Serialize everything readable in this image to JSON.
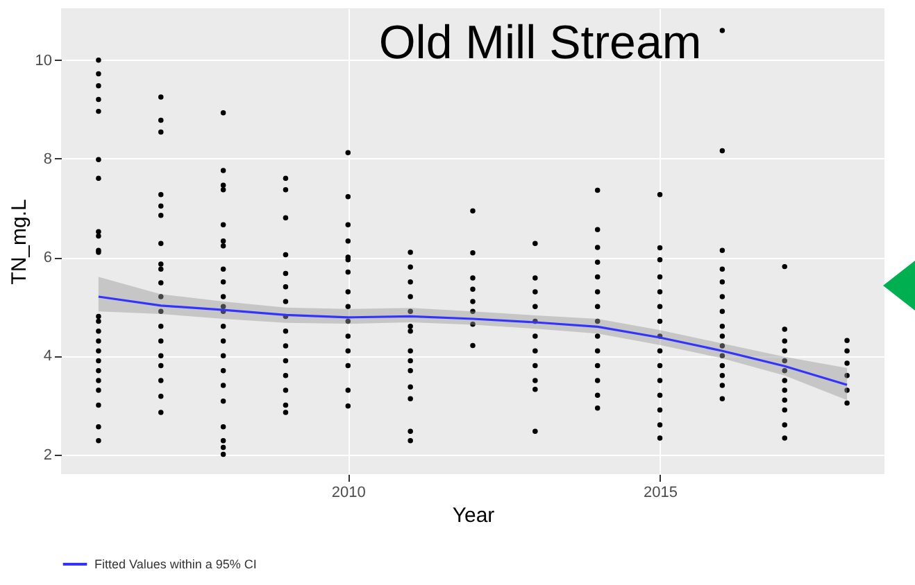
{
  "chart_data": {
    "type": "scatter",
    "title": "Old Mill Stream",
    "xlabel": "Year",
    "ylabel": "TN_mg.L",
    "xlim": [
      2005.4,
      2018.6
    ],
    "ylim": [
      1.6,
      11.05
    ],
    "xticks": [
      2010,
      2015
    ],
    "yticks": [
      2,
      4,
      6,
      8,
      10
    ],
    "grid": true,
    "legend": "bottom",
    "series": [
      {
        "marker": "circle",
        "color": "#000000",
        "x": [
          2006,
          2006,
          2006,
          2006,
          2006,
          2006,
          2006,
          2006,
          2006,
          2006,
          2006,
          2006,
          2006,
          2006,
          2006,
          2006,
          2006,
          2006,
          2006,
          2006,
          2006,
          2006,
          2006,
          2007,
          2007,
          2007,
          2007,
          2007,
          2007,
          2007,
          2007,
          2007,
          2007,
          2007,
          2007,
          2007,
          2007,
          2007,
          2007,
          2007,
          2007,
          2007,
          2008,
          2008,
          2008,
          2008,
          2008,
          2008,
          2008,
          2008,
          2008,
          2008,
          2008,
          2008,
          2008,
          2008,
          2008,
          2008,
          2008,
          2008,
          2008,
          2008,
          2008,
          2008,
          2009,
          2009,
          2009,
          2009,
          2009,
          2009,
          2009,
          2009,
          2009,
          2009,
          2009,
          2009,
          2009,
          2009,
          2009,
          2010,
          2010,
          2010,
          2010,
          2010,
          2010,
          2010,
          2010,
          2010,
          2010,
          2010,
          2010,
          2010,
          2010,
          2010,
          2011,
          2011,
          2011,
          2011,
          2011,
          2011,
          2011,
          2011,
          2011,
          2011,
          2011,
          2011,
          2011,
          2011,
          2012,
          2012,
          2012,
          2012,
          2012,
          2012,
          2012,
          2012,
          2013,
          2013,
          2013,
          2013,
          2013,
          2013,
          2013,
          2013,
          2013,
          2013,
          2013,
          2014,
          2014,
          2014,
          2014,
          2014,
          2014,
          2014,
          2014,
          2014,
          2014,
          2014,
          2014,
          2014,
          2014,
          2015,
          2015,
          2015,
          2015,
          2015,
          2015,
          2015,
          2015,
          2015,
          2015,
          2015,
          2015,
          2015,
          2015,
          2015,
          2016,
          2016,
          2016,
          2016,
          2016,
          2016,
          2016,
          2016,
          2016,
          2016,
          2016,
          2016,
          2016,
          2016,
          2016,
          2017,
          2017,
          2017,
          2017,
          2017,
          2017,
          2017,
          2017,
          2017,
          2017,
          2017,
          2017,
          2018,
          2018,
          2018,
          2018,
          2018,
          2018
        ],
        "values": [
          10,
          9.72,
          9.48,
          9.2,
          8.96,
          7.98,
          7.6,
          6.52,
          6.43,
          6.14,
          6.1,
          4.8,
          4.7,
          4.5,
          4.3,
          4.1,
          3.9,
          3.7,
          3.5,
          3.3,
          3.0,
          2.56,
          2.28,
          9.25,
          8.78,
          8.54,
          7.27,
          7.04,
          6.85,
          6.28,
          5.86,
          5.76,
          5.48,
          5.2,
          4.9,
          4.6,
          4.3,
          4.0,
          3.8,
          3.5,
          3.18,
          2.85,
          8.93,
          7.76,
          7.46,
          7.37,
          6.66,
          6.33,
          6.23,
          5.76,
          5.5,
          5.2,
          5.0,
          4.9,
          4.6,
          4.3,
          4.0,
          3.7,
          3.4,
          3.08,
          2.56,
          2.28,
          2.14,
          2.0,
          7.6,
          7.37,
          6.8,
          6.05,
          5.67,
          5.4,
          5.1,
          4.8,
          4.5,
          4.2,
          3.9,
          3.6,
          3.3,
          3.0,
          2.85,
          8.12,
          7.23,
          6.66,
          6.33,
          6.0,
          5.95,
          5.7,
          5.3,
          5.0,
          4.7,
          4.4,
          4.1,
          3.8,
          3.3,
          2.98,
          6.1,
          5.8,
          5.5,
          5.2,
          4.9,
          4.6,
          4.5,
          4.1,
          3.9,
          3.7,
          3.37,
          3.13,
          2.47,
          2.28,
          6.94,
          6.09,
          5.58,
          5.35,
          5.1,
          4.9,
          4.64,
          4.21,
          6.28,
          5.58,
          5.3,
          5.0,
          4.7,
          4.4,
          4.1,
          3.8,
          3.5,
          3.32,
          2.47,
          7.36,
          6.56,
          6.2,
          5.9,
          5.6,
          5.3,
          5.0,
          4.7,
          4.4,
          4.1,
          3.8,
          3.5,
          3.2,
          2.94,
          7.27,
          6.19,
          5.95,
          5.6,
          5.3,
          5.0,
          4.7,
          4.4,
          4.1,
          3.8,
          3.5,
          3.2,
          2.9,
          2.6,
          2.33,
          10.6,
          8.16,
          6.14,
          5.76,
          5.5,
          5.2,
          4.9,
          4.6,
          4.4,
          4.2,
          4.0,
          3.8,
          3.6,
          3.4,
          3.13,
          5.81,
          4.54,
          4.3,
          4.1,
          3.9,
          3.7,
          3.5,
          3.3,
          3.1,
          2.9,
          2.6,
          2.33,
          4.31,
          4.1,
          3.85,
          3.6,
          3.3,
          3.04
        ]
      },
      {
        "type": "line",
        "name": "Fitted Values within a 95% CI",
        "color": "#3333ff",
        "x": [
          2006,
          2007,
          2008,
          2009,
          2010,
          2011,
          2012,
          2013,
          2014,
          2015,
          2016,
          2017,
          2018
        ],
        "values": [
          5.2,
          5.02,
          4.93,
          4.83,
          4.78,
          4.8,
          4.75,
          4.68,
          4.59,
          4.37,
          4.1,
          3.79,
          3.41
        ],
        "lower": [
          4.9,
          4.85,
          4.75,
          4.67,
          4.65,
          4.68,
          4.63,
          4.55,
          4.45,
          4.22,
          3.95,
          3.6,
          3.1
        ],
        "upper": [
          5.6,
          5.25,
          5.1,
          4.98,
          4.95,
          4.97,
          4.9,
          4.82,
          4.75,
          4.52,
          4.25,
          3.98,
          3.75
        ]
      }
    ]
  }
}
